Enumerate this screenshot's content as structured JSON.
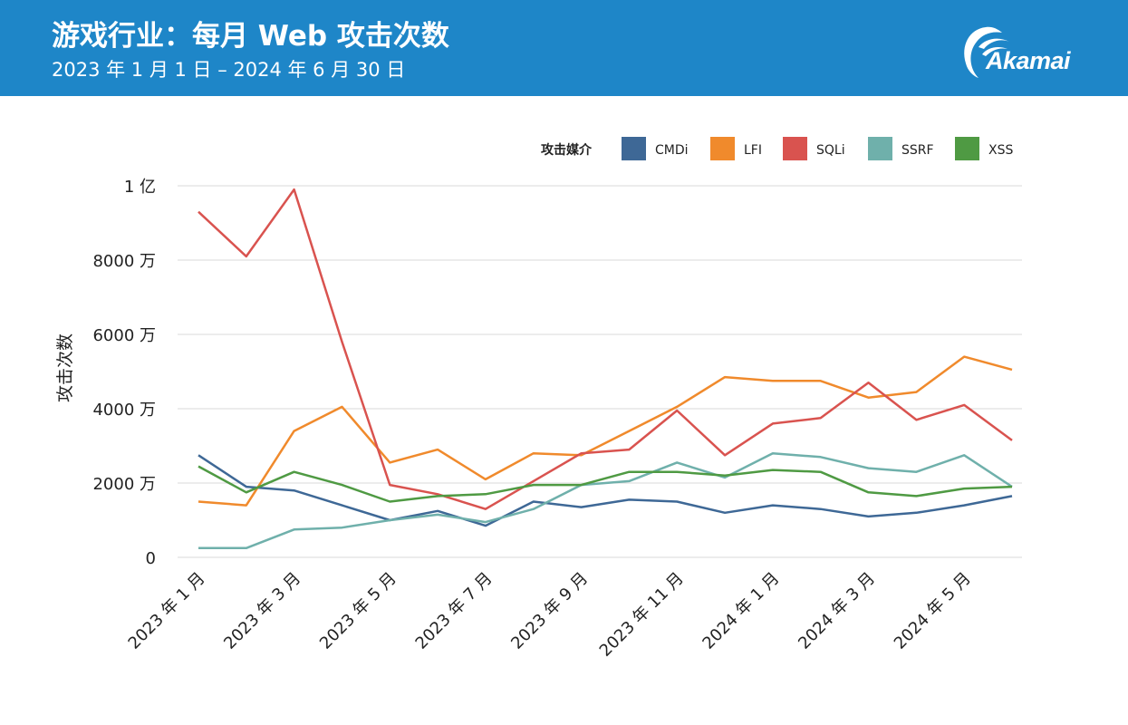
{
  "header": {
    "title": "游戏行业：每月 Web 攻击次数",
    "subtitle": "2023 年 1 月 1 日 – 2024 年 6 月 30 日",
    "logo_text": "Akamai",
    "background_color": "#1e86c8"
  },
  "chart_data": {
    "type": "line",
    "ylabel": "攻击次数",
    "ylim": [
      0,
      100000000
    ],
    "y_ticks": [
      0,
      20000000,
      40000000,
      60000000,
      80000000,
      100000000
    ],
    "y_tick_labels": [
      "0",
      "2000 万",
      "4000 万",
      "6000 万",
      "8000 万",
      "1 亿"
    ],
    "x": [
      "2023-01",
      "2023-02",
      "2023-03",
      "2023-04",
      "2023-05",
      "2023-06",
      "2023-07",
      "2023-08",
      "2023-09",
      "2023-10",
      "2023-11",
      "2023-12",
      "2024-01",
      "2024-02",
      "2024-03",
      "2024-04",
      "2024-05",
      "2024-06"
    ],
    "x_tick_labels": [
      "2023 年 1 月",
      "",
      "2023 年 3 月",
      "",
      "2023 年 5 月",
      "",
      "2023 年 7 月",
      "",
      "2023 年 9 月",
      "",
      "2023 年 11 月",
      "",
      "2024 年 1 月",
      "",
      "2024 年 3 月",
      "",
      "2024 年 5 月",
      ""
    ],
    "legend_title": "攻击媒介",
    "legend_position": "top-right",
    "grid": "horizontal",
    "series": [
      {
        "name": "CMDi",
        "color": "#3e6896",
        "values": [
          27500000,
          19000000,
          18000000,
          14000000,
          10000000,
          12500000,
          8500000,
          15000000,
          13500000,
          15500000,
          15000000,
          12000000,
          14000000,
          13000000,
          11000000,
          12000000,
          14000000,
          16500000
        ]
      },
      {
        "name": "LFI",
        "color": "#f08a2c",
        "values": [
          15000000,
          14000000,
          34000000,
          40500000,
          25500000,
          29000000,
          21000000,
          28000000,
          27500000,
          34000000,
          40500000,
          48500000,
          47500000,
          47500000,
          43000000,
          44500000,
          54000000,
          50500000
        ]
      },
      {
        "name": "SQLi",
        "color": "#d9534f",
        "values": [
          93000000,
          81000000,
          99000000,
          58000000,
          19500000,
          17000000,
          13000000,
          20500000,
          28000000,
          29000000,
          39500000,
          27500000,
          36000000,
          37500000,
          47000000,
          37000000,
          41000000,
          31500000
        ]
      },
      {
        "name": "SSRF",
        "color": "#6fb0ab",
        "values": [
          2500000,
          2500000,
          7500000,
          8000000,
          10000000,
          11500000,
          9500000,
          13000000,
          19500000,
          20500000,
          25500000,
          21500000,
          28000000,
          27000000,
          24000000,
          23000000,
          27500000,
          19000000
        ]
      },
      {
        "name": "XSS",
        "color": "#4f9a43",
        "values": [
          24500000,
          17500000,
          23000000,
          19500000,
          15000000,
          16500000,
          17000000,
          19500000,
          19500000,
          23000000,
          23000000,
          22000000,
          23500000,
          23000000,
          17500000,
          16500000,
          18500000,
          19000000
        ]
      }
    ]
  }
}
